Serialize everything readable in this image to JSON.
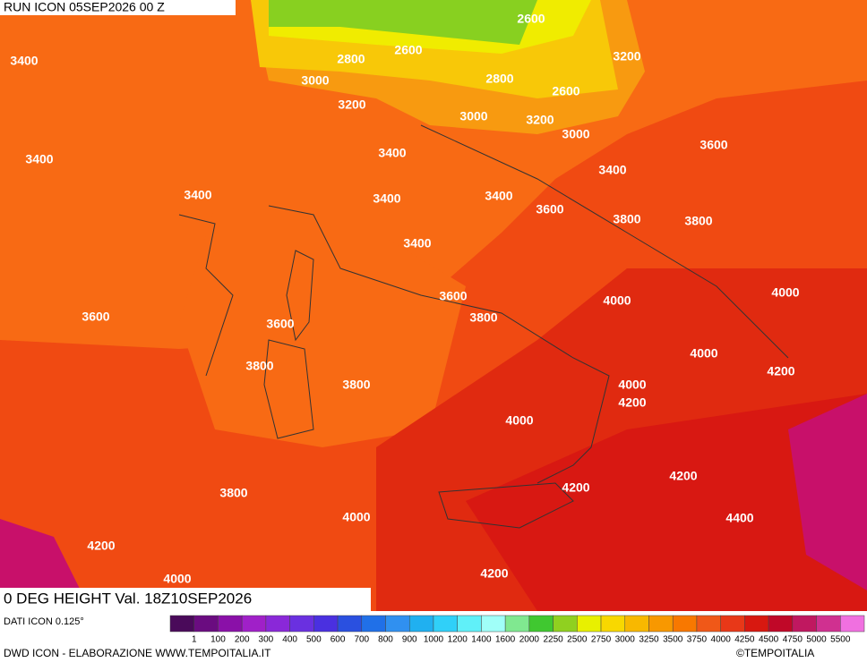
{
  "header": {
    "run": "RUN ICON 05SEP2026 00 Z"
  },
  "map": {
    "title": "0 DEG HEIGHT Val. 18Z10SEP2026",
    "contour_labels": [
      "3400",
      "2800",
      "2600",
      "2600",
      "3200",
      "3000",
      "2800",
      "2600",
      "3200",
      "3000",
      "3200",
      "3000",
      "3400",
      "3400",
      "3600",
      "3400",
      "3400",
      "3400",
      "3400",
      "3600",
      "3800",
      "3800",
      "3400",
      "3600",
      "3600",
      "4000",
      "4000",
      "3800",
      "3600",
      "4000",
      "3800",
      "4200",
      "3800",
      "4000",
      "4200",
      "4000",
      "4200",
      "4200",
      "3800",
      "4000",
      "4400",
      "4200",
      "4000",
      "4200"
    ]
  },
  "legend": {
    "source": "DATI ICON 0.125°",
    "colors": [
      "#4a0a5a",
      "#6a0c80",
      "#8a10a8",
      "#a020c8",
      "#8a28d8",
      "#6a30e0",
      "#4a30e0",
      "#2a50e0",
      "#2070e8",
      "#3090f0",
      "#20b0f0",
      "#30d0f8",
      "#60f0f8",
      "#a0fff8",
      "#80e890",
      "#40c830",
      "#90d020",
      "#e8f000",
      "#f8d800",
      "#f8b800",
      "#f89800",
      "#f87800",
      "#f05818",
      "#e83818",
      "#d81810",
      "#c00828",
      "#c01860",
      "#d03090",
      "#f070e0"
    ],
    "labels": [
      "1",
      "100",
      "200",
      "300",
      "400",
      "500",
      "600",
      "700",
      "800",
      "900",
      "1000",
      "1200",
      "1400",
      "1600",
      "2000",
      "2250",
      "2500",
      "2750",
      "3000",
      "3250",
      "3500",
      "3750",
      "4000",
      "4250",
      "4500",
      "4750",
      "5000",
      "5500"
    ]
  },
  "footer": {
    "credit": "DWD ICON - ELABORAZIONE WWW.TEMPOITALIA.IT",
    "copyright": "©TEMPOITALIA"
  }
}
